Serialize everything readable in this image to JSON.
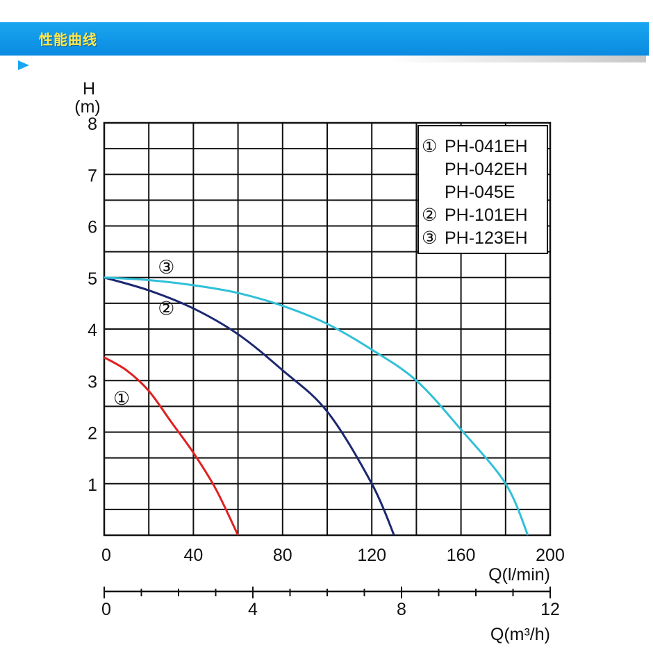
{
  "header": {
    "title": "性能曲线"
  },
  "chart_data": {
    "type": "line",
    "y_unit_symbol": "H",
    "y_unit": "(m)",
    "xlabel": "Q(l/min)",
    "x2label": "Q(m³/h)",
    "xlim": [
      0,
      200
    ],
    "ylim": [
      0,
      8
    ],
    "x2lim": [
      0,
      12
    ],
    "x_ticks": [
      "0",
      "40",
      "80",
      "120",
      "160",
      "200"
    ],
    "y_ticks": [
      "1",
      "2",
      "3",
      "4",
      "5",
      "6",
      "7",
      "8"
    ],
    "x2_ticks": [
      "0",
      "4",
      "8",
      "12"
    ],
    "grid": true,
    "legend_position": "top-right",
    "legend": [
      {
        "marker": "①",
        "models": [
          "PH-041EH",
          "PH-042EH",
          "PH-045E"
        ]
      },
      {
        "marker": "②",
        "models": [
          "PH-101EH"
        ]
      },
      {
        "marker": "③",
        "models": [
          "PH-123EH"
        ]
      }
    ],
    "series": [
      {
        "name": "①",
        "color": "#e02020",
        "x": [
          0,
          10,
          20,
          30,
          40,
          50,
          60
        ],
        "y": [
          3.45,
          3.2,
          2.8,
          2.2,
          1.6,
          0.9,
          0
        ]
      },
      {
        "name": "②",
        "color": "#1c2870",
        "x": [
          0,
          20,
          40,
          60,
          80,
          100,
          120,
          130
        ],
        "y": [
          5.0,
          4.75,
          4.4,
          3.9,
          3.2,
          2.4,
          1.0,
          0
        ]
      },
      {
        "name": "③",
        "color": "#30c0d8",
        "x": [
          0,
          20,
          40,
          60,
          80,
          100,
          120,
          140,
          160,
          180,
          190
        ],
        "y": [
          5.0,
          4.95,
          4.85,
          4.7,
          4.45,
          4.1,
          3.6,
          3.0,
          2.05,
          1.0,
          0
        ]
      }
    ]
  }
}
